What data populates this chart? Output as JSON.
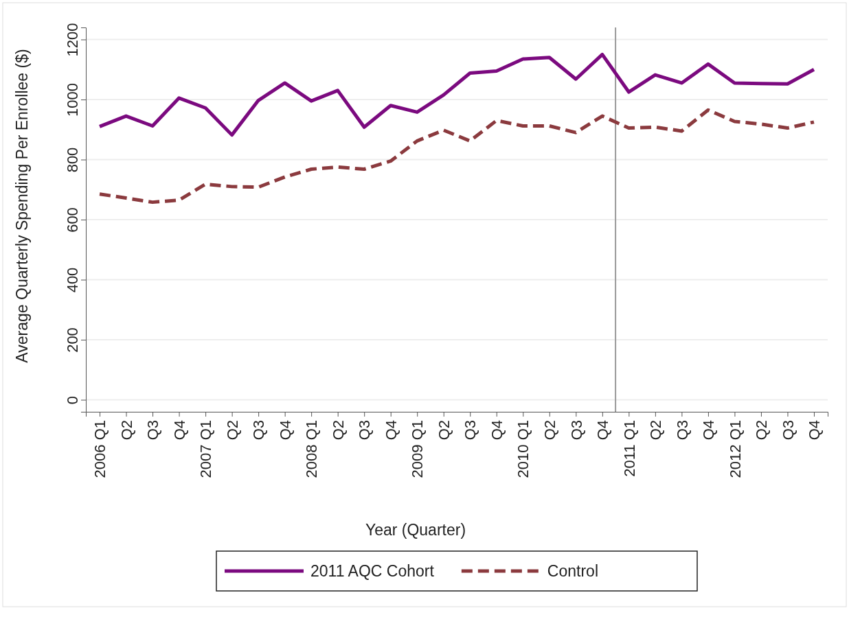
{
  "chart_data": {
    "type": "line",
    "xlabel": "Year (Quarter)",
    "ylabel": "Average Quarterly Spending Per Enrollee ($)",
    "categories": [
      "2006 Q1",
      "Q2",
      "Q3",
      "Q4",
      "2007 Q1",
      "Q2",
      "Q3",
      "Q4",
      "2008 Q1",
      "Q2",
      "Q3",
      "Q4",
      "2009 Q1",
      "Q2",
      "Q3",
      "Q4",
      "2010 Q1",
      "Q2",
      "Q3",
      "Q4",
      "2011 Q1",
      "Q2",
      "Q3",
      "Q4",
      "2012 Q1",
      "Q2",
      "Q3",
      "Q4"
    ],
    "ylim": [
      -40,
      1240
    ],
    "yticks": [
      0,
      200,
      400,
      600,
      800,
      1000,
      1200
    ],
    "grid": "y",
    "legend": "bottom",
    "ref_lines": [
      {
        "axis": "x",
        "value": "2011 Q1",
        "color": "#999999"
      }
    ],
    "series": [
      {
        "name": "2011 AQC Cohort",
        "color": "#7b0a7f",
        "line_style": "solid",
        "values": [
          910,
          945,
          912,
          1005,
          972,
          882,
          997,
          1055,
          995,
          1030,
          908,
          980,
          958,
          1015,
          1088,
          1095,
          1135,
          1140,
          1068,
          1150,
          1025,
          1082,
          1055,
          1118,
          1055,
          1053,
          1052,
          1100
        ]
      },
      {
        "name": "Control",
        "color": "#8b3a3e",
        "line_style": "dashed",
        "values": [
          685,
          672,
          658,
          665,
          718,
          710,
          708,
          742,
          768,
          775,
          768,
          795,
          862,
          898,
          862,
          930,
          912,
          912,
          890,
          945,
          905,
          908,
          895,
          965,
          927,
          918,
          905,
          925
        ]
      }
    ]
  }
}
